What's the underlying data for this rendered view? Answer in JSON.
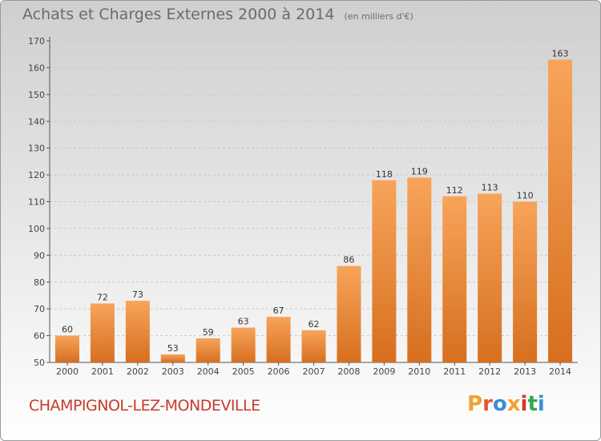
{
  "header": {
    "title": "Achats et Charges Externes 2000 à 2014",
    "subtitle": "(en milliers d'€)"
  },
  "footer": {
    "commune": "CHAMPIGNOL-LEZ-MONDEVILLE",
    "logo_text": "Proxiti",
    "logo_colors": [
      "#f0a330",
      "#e8552b",
      "#3a8fd6",
      "#f0a330",
      "#d8342c",
      "#2fa84f",
      "#3a8fd6"
    ]
  },
  "colors": {
    "bar_light": "#f7a45a",
    "bar_dark": "#d76f1f",
    "grid": "#c8c8c8",
    "commune": "#c63a2c"
  },
  "chart_data": {
    "type": "bar",
    "title": "Achats et Charges Externes 2000 à 2014",
    "subtitle": "(en milliers d'€)",
    "categories": [
      "2000",
      "2001",
      "2002",
      "2003",
      "2004",
      "2005",
      "2006",
      "2007",
      "2008",
      "2009",
      "2010",
      "2011",
      "2012",
      "2013",
      "2014"
    ],
    "values": [
      60,
      72,
      73,
      53,
      59,
      63,
      67,
      62,
      86,
      118,
      119,
      112,
      113,
      110,
      163
    ],
    "ylim": [
      50,
      170
    ],
    "yticks": [
      50,
      60,
      70,
      80,
      90,
      100,
      110,
      120,
      130,
      140,
      150,
      160,
      170
    ],
    "grid": true,
    "data_labels": true
  }
}
